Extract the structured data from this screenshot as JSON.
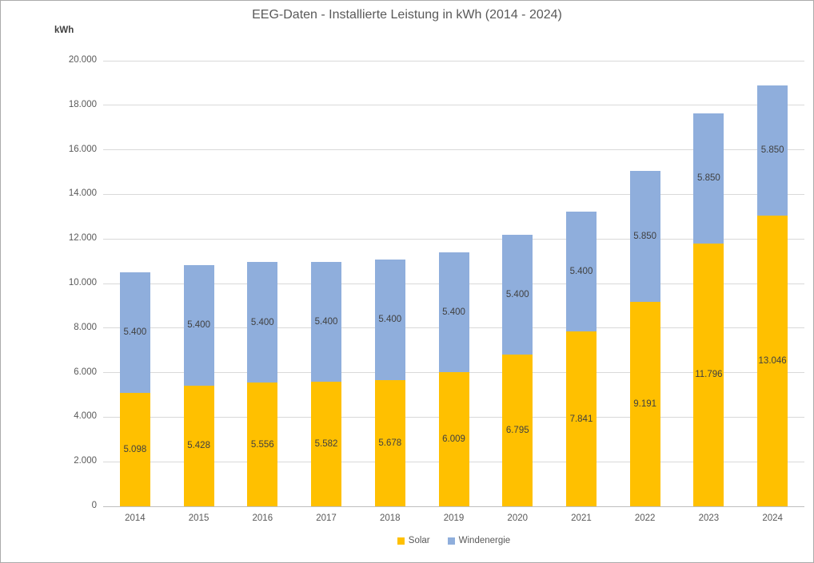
{
  "chart_data": {
    "type": "bar",
    "stacked": true,
    "title": "EEG-Daten - Installierte Leistung in kWh (2014 - 2024)",
    "unit_label": "kWh",
    "categories": [
      "2014",
      "2015",
      "2016",
      "2017",
      "2018",
      "2019",
      "2020",
      "2021",
      "2022",
      "2023",
      "2024"
    ],
    "series": [
      {
        "name": "Solar",
        "color": "#FFC000",
        "values": [
          5098,
          5428,
          5556,
          5582,
          5678,
          6009,
          6795,
          7841,
          9191,
          11796,
          13046
        ],
        "labels": [
          "5.098",
          "5.428",
          "5.556",
          "5.582",
          "5.678",
          "6.009",
          "6.795",
          "7.841",
          "9.191",
          "11.796",
          "13.046"
        ]
      },
      {
        "name": "Windenergie",
        "color": "#8FAEDC",
        "values": [
          5400,
          5400,
          5400,
          5400,
          5400,
          5400,
          5400,
          5400,
          5850,
          5850,
          5850
        ],
        "labels": [
          "5.400",
          "5.400",
          "5.400",
          "5.400",
          "5.400",
          "5.400",
          "5.400",
          "5.400",
          "5.850",
          "5.850",
          "5.850"
        ]
      }
    ],
    "xlabel": "",
    "ylabel": "kWh",
    "ylim": [
      0,
      20000
    ],
    "y_ticks": [
      {
        "value": 0,
        "label": "0"
      },
      {
        "value": 2000,
        "label": "2.000"
      },
      {
        "value": 4000,
        "label": "4.000"
      },
      {
        "value": 6000,
        "label": "6.000"
      },
      {
        "value": 8000,
        "label": "8.000"
      },
      {
        "value": 10000,
        "label": "10.000"
      },
      {
        "value": 12000,
        "label": "12.000"
      },
      {
        "value": 14000,
        "label": "14.000"
      },
      {
        "value": 16000,
        "label": "16.000"
      },
      {
        "value": 18000,
        "label": "18.000"
      },
      {
        "value": 20000,
        "label": "20.000"
      }
    ],
    "grid": true,
    "legend_position": "bottom-center",
    "colors": {
      "axis_text": "#595959",
      "data_label": "#404040",
      "gridline": "#D9D9D9",
      "axis_line": "#BFBFBF"
    }
  }
}
